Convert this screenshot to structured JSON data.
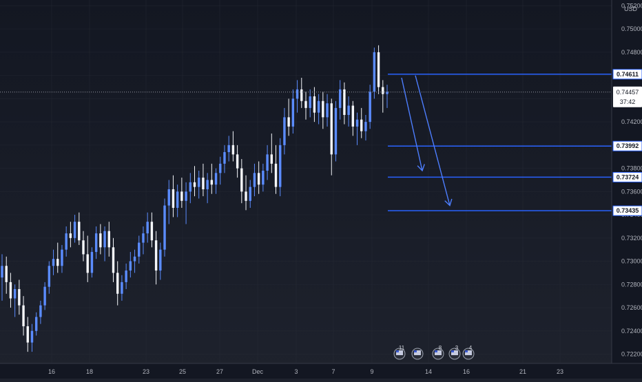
{
  "chart_data": {
    "type": "candlestick",
    "y_axis": {
      "unit": "USD",
      "ticks": [
        "0.75200",
        "0.75000",
        "0.74800",
        "0.74600",
        "0.74400",
        "0.74200",
        "0.74000",
        "0.73800",
        "0.73600",
        "0.73400",
        "0.73200",
        "0.73000",
        "0.72800",
        "0.72600",
        "0.72400",
        "0.72200"
      ],
      "range": [
        0.7212,
        0.7525
      ]
    },
    "x_axis": {
      "ticks": [
        "16",
        "18",
        "23",
        "25",
        "27",
        "Dec",
        "3",
        "7",
        "9",
        "14",
        "16",
        "21",
        "23"
      ]
    },
    "current_price": {
      "value": "0.74457",
      "countdown": "37:42"
    },
    "horizontal_levels": [
      {
        "value": "0.74611",
        "color": "#2962ff"
      },
      {
        "value": "0.73992",
        "color": "#2962ff"
      },
      {
        "value": "0.73724",
        "color": "#2962ff"
      },
      {
        "value": "0.73435",
        "color": "#2962ff"
      }
    ],
    "arrows": [
      {
        "from": [
          0.7458,
          0.746
        ],
        "to": [
          0.7378
        ]
      },
      {
        "from": [
          0.7458
        ],
        "to": [
          0.7348
        ]
      }
    ],
    "events": [
      {
        "icon": "flag-icon",
        "count": "11"
      },
      {
        "icon": "flag-icon",
        "count": ""
      },
      {
        "icon": "flag-icon",
        "count": "8"
      },
      {
        "icon": "flag-icon",
        "count": "3"
      },
      {
        "icon": "flag-icon",
        "count": "4"
      }
    ],
    "candles": [
      [
        0.7286,
        0.7306,
        0.7266,
        0.7296
      ],
      [
        0.7296,
        0.7304,
        0.7272,
        0.7282
      ],
      [
        0.7282,
        0.729,
        0.726,
        0.7268
      ],
      [
        0.7268,
        0.728,
        0.7252,
        0.7276
      ],
      [
        0.7276,
        0.7284,
        0.7254,
        0.7262
      ],
      [
        0.7262,
        0.727,
        0.7236,
        0.7244
      ],
      [
        0.7244,
        0.7252,
        0.7222,
        0.723
      ],
      [
        0.723,
        0.7246,
        0.7222,
        0.724
      ],
      [
        0.724,
        0.7256,
        0.7236,
        0.7252
      ],
      [
        0.7252,
        0.7266,
        0.7246,
        0.7262
      ],
      [
        0.7262,
        0.7282,
        0.7258,
        0.7278
      ],
      [
        0.7278,
        0.73,
        0.7272,
        0.7296
      ],
      [
        0.7296,
        0.731,
        0.7288,
        0.7302
      ],
      [
        0.7302,
        0.7316,
        0.729,
        0.7296
      ],
      [
        0.7296,
        0.7314,
        0.729,
        0.731
      ],
      [
        0.731,
        0.733,
        0.7304,
        0.7324
      ],
      [
        0.7324,
        0.7334,
        0.7312,
        0.732
      ],
      [
        0.732,
        0.734,
        0.7316,
        0.7334
      ],
      [
        0.7334,
        0.7342,
        0.7314,
        0.7318
      ],
      [
        0.7318,
        0.7326,
        0.73,
        0.7306
      ],
      [
        0.7306,
        0.7322,
        0.7282,
        0.729
      ],
      [
        0.729,
        0.7312,
        0.7286,
        0.7308
      ],
      [
        0.7308,
        0.733,
        0.7302,
        0.7324
      ],
      [
        0.7324,
        0.7332,
        0.7306,
        0.7312
      ],
      [
        0.7312,
        0.733,
        0.73,
        0.7326
      ],
      [
        0.7326,
        0.7334,
        0.7304,
        0.7312
      ],
      [
        0.7312,
        0.732,
        0.7282,
        0.729
      ],
      [
        0.729,
        0.73,
        0.7262,
        0.7272
      ],
      [
        0.7272,
        0.7288,
        0.7266,
        0.7282
      ],
      [
        0.7282,
        0.7298,
        0.7276,
        0.7292
      ],
      [
        0.7292,
        0.7308,
        0.7286,
        0.73
      ],
      [
        0.73,
        0.731,
        0.729,
        0.7304
      ],
      [
        0.7304,
        0.7322,
        0.7298,
        0.7316
      ],
      [
        0.7316,
        0.733,
        0.7306,
        0.7324
      ],
      [
        0.7324,
        0.7342,
        0.7316,
        0.7334
      ],
      [
        0.7334,
        0.7342,
        0.7312,
        0.7318
      ],
      [
        0.7318,
        0.7326,
        0.728,
        0.7292
      ],
      [
        0.7292,
        0.7316,
        0.7284,
        0.731
      ],
      [
        0.731,
        0.7354,
        0.7304,
        0.7348
      ],
      [
        0.7348,
        0.737,
        0.7332,
        0.7362
      ],
      [
        0.7362,
        0.7374,
        0.7338,
        0.7346
      ],
      [
        0.7346,
        0.7366,
        0.7338,
        0.736
      ],
      [
        0.736,
        0.7372,
        0.7346,
        0.7352
      ],
      [
        0.7352,
        0.7368,
        0.7332,
        0.736
      ],
      [
        0.736,
        0.7376,
        0.735,
        0.7368
      ],
      [
        0.7368,
        0.7382,
        0.7356,
        0.7364
      ],
      [
        0.7364,
        0.7378,
        0.7354,
        0.7372
      ],
      [
        0.7372,
        0.7384,
        0.7356,
        0.7362
      ],
      [
        0.7362,
        0.7376,
        0.735,
        0.737
      ],
      [
        0.737,
        0.7384,
        0.7358,
        0.7366
      ],
      [
        0.7366,
        0.738,
        0.7358,
        0.7376
      ],
      [
        0.7376,
        0.739,
        0.7366,
        0.7384
      ],
      [
        0.7384,
        0.74,
        0.7376,
        0.7394
      ],
      [
        0.7394,
        0.7408,
        0.7386,
        0.74
      ],
      [
        0.74,
        0.7412,
        0.7386,
        0.7392
      ],
      [
        0.7392,
        0.74,
        0.7372,
        0.738
      ],
      [
        0.738,
        0.7388,
        0.735,
        0.736
      ],
      [
        0.736,
        0.7374,
        0.7344,
        0.7352
      ],
      [
        0.7352,
        0.737,
        0.7346,
        0.7364
      ],
      [
        0.7364,
        0.7384,
        0.7356,
        0.7376
      ],
      [
        0.7376,
        0.7386,
        0.7358,
        0.7366
      ],
      [
        0.7366,
        0.7384,
        0.736,
        0.7378
      ],
      [
        0.7378,
        0.74,
        0.737,
        0.7392
      ],
      [
        0.7392,
        0.741,
        0.7376,
        0.7384
      ],
      [
        0.7384,
        0.74,
        0.7358,
        0.7364
      ],
      [
        0.7364,
        0.7406,
        0.7356,
        0.74
      ],
      [
        0.74,
        0.7432,
        0.7392,
        0.7424
      ],
      [
        0.7424,
        0.744,
        0.7408,
        0.7416
      ],
      [
        0.7416,
        0.7448,
        0.741,
        0.744
      ],
      [
        0.744,
        0.7456,
        0.7428,
        0.7448
      ],
      [
        0.7448,
        0.7458,
        0.7432,
        0.7438
      ],
      [
        0.7438,
        0.7446,
        0.7422,
        0.7432
      ],
      [
        0.7432,
        0.7448,
        0.7424,
        0.7442
      ],
      [
        0.7442,
        0.745,
        0.742,
        0.7428
      ],
      [
        0.7428,
        0.7444,
        0.7418,
        0.7438
      ],
      [
        0.7438,
        0.7446,
        0.7414,
        0.7424
      ],
      [
        0.7424,
        0.7444,
        0.7416,
        0.7436
      ],
      [
        0.7436,
        0.744,
        0.7374,
        0.7392
      ],
      [
        0.7392,
        0.7438,
        0.7386,
        0.7432
      ],
      [
        0.7432,
        0.7456,
        0.7422,
        0.7448
      ],
      [
        0.7448,
        0.7454,
        0.7418,
        0.7426
      ],
      [
        0.7426,
        0.7442,
        0.7416,
        0.7434
      ],
      [
        0.7434,
        0.7438,
        0.7408,
        0.7416
      ],
      [
        0.7416,
        0.7428,
        0.74,
        0.7422
      ],
      [
        0.7422,
        0.7432,
        0.7406,
        0.7412
      ],
      [
        0.7412,
        0.7426,
        0.7404,
        0.742
      ],
      [
        0.742,
        0.7452,
        0.7414,
        0.7446
      ],
      [
        0.7446,
        0.7484,
        0.744,
        0.748
      ],
      [
        0.748,
        0.7486,
        0.7444,
        0.745
      ],
      [
        0.745,
        0.7456,
        0.7428,
        0.7444
      ],
      [
        0.7444,
        0.7452,
        0.7432,
        0.7446
      ]
    ]
  }
}
